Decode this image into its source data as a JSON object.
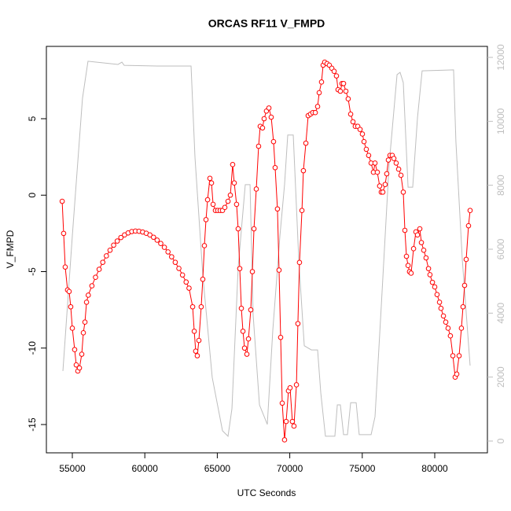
{
  "chart_data": {
    "type": "line",
    "title": "ORCAS RF11 V_FMPD",
    "xlabel": "UTC Seconds",
    "ylabel": "V_FMPD",
    "xlim": [
      53210,
      83634
    ],
    "ylim": [
      -16.85,
      9.73
    ],
    "y2lim": [
      -369,
      12344
    ],
    "xticks": [
      55000,
      60000,
      65000,
      70000,
      75000,
      80000
    ],
    "yticks": [
      -15,
      -10,
      -5,
      0,
      5
    ],
    "y2ticks": [
      0,
      2000,
      4000,
      6000,
      8000,
      10000,
      12000
    ],
    "series": [
      {
        "color": "#bebebe",
        "axis": "y2",
        "marker": "none",
        "x": [
          54350,
          55000,
          55700,
          56080,
          58150,
          58420,
          58580,
          60860,
          63190,
          63460,
          64000,
          64650,
          65360,
          65740,
          66010,
          66440,
          66930,
          67260,
          67470,
          67910,
          68450,
          68830,
          69320,
          69640,
          69860,
          70240,
          70620,
          71000,
          71490,
          71920,
          72140,
          72460,
          73110,
          73280,
          73490,
          73710,
          73980,
          74200,
          74580,
          74790,
          75610,
          75880,
          76310,
          76850,
          77400,
          77610,
          77830,
          78160,
          78480,
          78810,
          79130,
          81300,
          81460,
          81900,
          82440
        ],
        "values": [
          2190,
          6420,
          10720,
          11880,
          11780,
          11850,
          11750,
          11730,
          11730,
          8880,
          5190,
          1990,
          320,
          150,
          1010,
          5430,
          8020,
          8020,
          3960,
          1130,
          520,
          3470,
          6420,
          8020,
          9570,
          9570,
          5680,
          2980,
          2850,
          2850,
          1500,
          150,
          150,
          1130,
          1130,
          200,
          200,
          1200,
          1200,
          200,
          200,
          760,
          4200,
          8630,
          11460,
          11530,
          11210,
          7940,
          7940,
          10110,
          11580,
          11610,
          9370,
          5680,
          2360
        ]
      },
      {
        "color": "#ff0000",
        "marker": "circle",
        "x": [
          54300,
          54400,
          54510,
          54670,
          54780,
          54890,
          55000,
          55160,
          55270,
          55380,
          55490,
          55650,
          55760,
          55870,
          55980,
          56100,
          56350,
          56600,
          56850,
          57100,
          57350,
          57600,
          57850,
          58100,
          58350,
          58600,
          58850,
          59100,
          59350,
          59600,
          59850,
          60100,
          60350,
          60600,
          60850,
          61100,
          61350,
          61600,
          61850,
          62100,
          62350,
          62600,
          62850,
          63050,
          63300,
          63410,
          63510,
          63620,
          63730,
          63890,
          64000,
          64110,
          64220,
          64330,
          64490,
          64600,
          64710,
          64870,
          65030,
          65200,
          65360,
          65520,
          65740,
          65900,
          66060,
          66170,
          66330,
          66440,
          66550,
          66660,
          66770,
          66880,
          67040,
          67150,
          67310,
          67420,
          67530,
          67690,
          67850,
          67960,
          68120,
          68230,
          68390,
          68560,
          68720,
          68880,
          68990,
          69150,
          69260,
          69370,
          69480,
          69640,
          69750,
          69910,
          70020,
          70180,
          70290,
          70460,
          70560,
          70670,
          70840,
          70940,
          71110,
          71270,
          71430,
          71590,
          71760,
          71920,
          72030,
          72190,
          72300,
          72410,
          72570,
          72730,
          72900,
          73060,
          73220,
          73330,
          73490,
          73600,
          73710,
          73870,
          74030,
          74200,
          74360,
          74520,
          74690,
          74850,
          75010,
          75120,
          75280,
          75440,
          75610,
          75770,
          75880,
          76040,
          76200,
          76310,
          76420,
          76580,
          76690,
          76800,
          76910,
          77070,
          77180,
          77340,
          77510,
          77670,
          77830,
          77940,
          78050,
          78160,
          78260,
          78370,
          78540,
          78700,
          78810,
          78970,
          79080,
          79240,
          79400,
          79570,
          79670,
          79840,
          80000,
          80160,
          80330,
          80430,
          80600,
          80760,
          80920,
          81080,
          81250,
          81410,
          81520,
          81680,
          81840,
          81950,
          82060,
          82170,
          82330,
          82440
        ],
        "values": [
          -0.4,
          -2.5,
          -4.7,
          -6.2,
          -6.3,
          -7.3,
          -8.7,
          -10.1,
          -11.1,
          -11.5,
          -11.3,
          -10.4,
          -9.0,
          -8.3,
          -7.0,
          -6.54,
          -5.93,
          -5.37,
          -4.85,
          -4.39,
          -3.97,
          -3.6,
          -3.27,
          -3.0,
          -2.77,
          -2.6,
          -2.47,
          -2.38,
          -2.35,
          -2.36,
          -2.41,
          -2.49,
          -2.6,
          -2.75,
          -2.94,
          -3.16,
          -3.41,
          -3.71,
          -4.03,
          -4.39,
          -4.79,
          -5.22,
          -5.68,
          -6.08,
          -7.3,
          -8.9,
          -10.2,
          -10.5,
          -9.5,
          -7.3,
          -5.5,
          -3.3,
          -1.6,
          -0.3,
          1.1,
          0.8,
          -0.6,
          -1.0,
          -1.0,
          -1.0,
          -1.0,
          -0.8,
          -0.4,
          0.0,
          2.0,
          0.8,
          -0.6,
          -2.2,
          -4.8,
          -7.4,
          -8.9,
          -10.0,
          -10.4,
          -9.4,
          -7.5,
          -5.0,
          -2.2,
          0.4,
          3.2,
          4.5,
          4.4,
          5.0,
          5.5,
          5.7,
          5.1,
          3.5,
          1.8,
          -0.9,
          -4.9,
          -9.3,
          -13.6,
          -16.0,
          -14.8,
          -12.8,
          -12.6,
          -14.8,
          -15.1,
          -12.4,
          -8.4,
          -4.4,
          -1.0,
          1.6,
          3.4,
          5.2,
          5.3,
          5.4,
          5.4,
          5.8,
          6.7,
          7.4,
          8.5,
          8.7,
          8.6,
          8.5,
          8.3,
          8.1,
          7.8,
          6.9,
          6.8,
          7.3,
          7.3,
          6.8,
          6.3,
          5.3,
          4.8,
          4.5,
          4.5,
          4.3,
          4.0,
          3.5,
          3.0,
          2.6,
          2.1,
          1.5,
          2.1,
          1.5,
          0.6,
          0.2,
          0.2,
          0.7,
          1.4,
          2.3,
          2.6,
          2.6,
          2.4,
          2.1,
          1.7,
          1.3,
          0.2,
          -2.3,
          -4.0,
          -4.6,
          -5.0,
          -5.1,
          -3.5,
          -2.4,
          -2.6,
          -2.2,
          -3.1,
          -3.6,
          -4.1,
          -4.8,
          -5.2,
          -5.7,
          -6.0,
          -6.5,
          -7.0,
          -7.4,
          -7.9,
          -8.3,
          -8.7,
          -9.2,
          -10.5,
          -11.9,
          -11.7,
          -10.5,
          -8.7,
          -7.3,
          -5.9,
          -4.2,
          -2.0,
          -1.0
        ]
      }
    ]
  }
}
